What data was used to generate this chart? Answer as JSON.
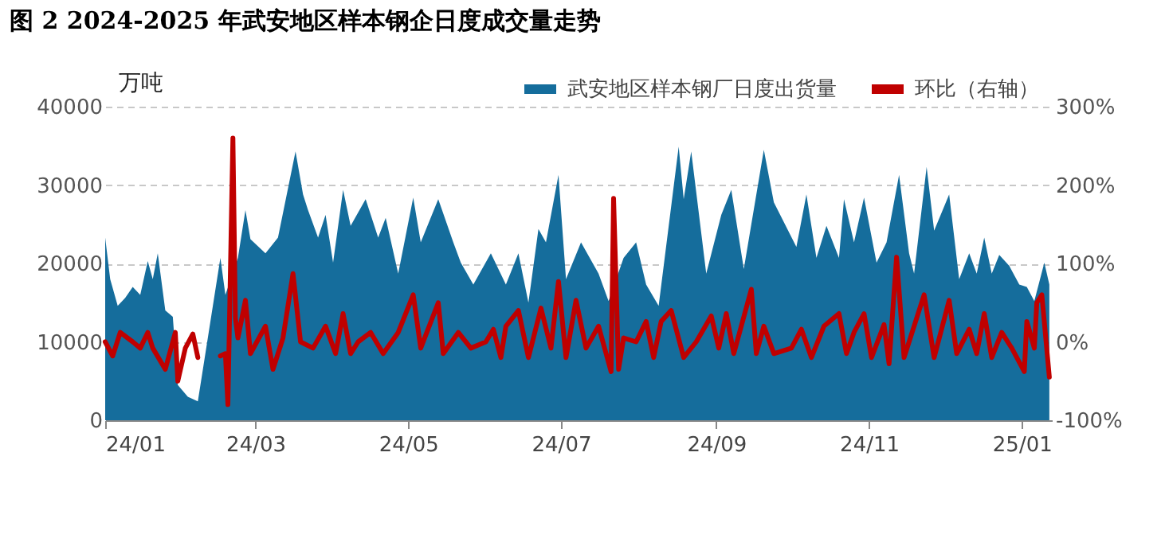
{
  "chart_data": {
    "type": "area",
    "title": "图 2 2024-2025 年武安地区样本钢企日度成交量走势",
    "ylabel": "万吨",
    "xlim": [
      "2024-01-01",
      "2025-01-13"
    ],
    "xticks": [
      {
        "value": "2024-01-01",
        "label": "24/01"
      },
      {
        "value": "2024-03-01",
        "label": "24/03"
      },
      {
        "value": "2024-05-01",
        "label": "24/05"
      },
      {
        "value": "2024-07-01",
        "label": "24/07"
      },
      {
        "value": "2024-09-01",
        "label": "24/09"
      },
      {
        "value": "2024-11-01",
        "label": "24/11"
      },
      {
        "value": "2025-01-01",
        "label": "25/01"
      }
    ],
    "ylim": [
      0,
      40000
    ],
    "yticks": [
      0,
      10000,
      20000,
      30000,
      40000
    ],
    "y2lim": [
      -100,
      300
    ],
    "y2ticks": [
      {
        "value": -100,
        "label": "-100%"
      },
      {
        "value": 0,
        "label": "0%"
      },
      {
        "value": 100,
        "label": "100%"
      },
      {
        "value": 200,
        "label": "200%"
      },
      {
        "value": 300,
        "label": "300%"
      }
    ],
    "grid": "y",
    "legend": "top right",
    "series": [
      {
        "name": "武安地区样本钢厂日度出货量",
        "color": "#156d9c",
        "x": [
          "2024-01-01",
          "2024-01-03",
          "2024-01-06",
          "2024-01-09",
          "2024-01-12",
          "2024-01-15",
          "2024-01-18",
          "2024-01-20",
          "2024-01-22",
          "2024-01-25",
          "2024-01-28",
          "2024-01-30",
          "2024-02-03",
          "2024-02-07",
          "2024-02-16",
          "2024-02-18",
          "2024-02-23",
          "2024-02-26",
          "2024-02-28",
          "2024-03-05",
          "2024-03-10",
          "2024-03-17",
          "2024-03-20",
          "2024-03-22",
          "2024-03-26",
          "2024-03-29",
          "2024-04-01",
          "2024-04-05",
          "2024-04-08",
          "2024-04-14",
          "2024-04-19",
          "2024-04-22",
          "2024-04-27",
          "2024-05-03",
          "2024-05-06",
          "2024-05-13",
          "2024-05-19",
          "2024-05-22",
          "2024-05-27",
          "2024-06-03",
          "2024-06-09",
          "2024-06-14",
          "2024-06-18",
          "2024-06-22",
          "2024-06-25",
          "2024-06-30",
          "2024-07-03",
          "2024-07-09",
          "2024-07-16",
          "2024-07-20",
          "2024-07-26",
          "2024-07-31",
          "2024-08-04",
          "2024-08-09",
          "2024-08-17",
          "2024-08-19",
          "2024-08-22",
          "2024-08-28",
          "2024-09-03",
          "2024-09-07",
          "2024-09-12",
          "2024-09-20",
          "2024-09-24",
          "2024-10-03",
          "2024-10-07",
          "2024-10-11",
          "2024-10-15",
          "2024-10-20",
          "2024-10-22",
          "2024-10-26",
          "2024-10-30",
          "2024-11-04",
          "2024-11-08",
          "2024-11-13",
          "2024-11-17",
          "2024-11-19",
          "2024-11-24",
          "2024-11-27",
          "2024-12-03",
          "2024-12-07",
          "2024-12-11",
          "2024-12-14",
          "2024-12-17",
          "2024-12-20",
          "2024-12-23",
          "2024-12-27",
          "2024-12-31",
          "2025-01-03",
          "2025-01-06",
          "2025-01-10",
          "2025-01-12"
        ],
        "values": [
          23300,
          18000,
          14600,
          15600,
          17000,
          16000,
          20300,
          18000,
          21300,
          14000,
          13200,
          4500,
          3000,
          2400,
          20700,
          16000,
          20700,
          26800,
          23100,
          21300,
          23300,
          34300,
          28800,
          26800,
          23300,
          26200,
          20100,
          29400,
          24800,
          28200,
          23300,
          25800,
          18700,
          28400,
          22700,
          28200,
          22700,
          20100,
          17300,
          21300,
          17300,
          21300,
          15000,
          24400,
          22700,
          31300,
          18000,
          22700,
          18700,
          15200,
          20700,
          22700,
          17300,
          14600,
          34900,
          28200,
          34300,
          18700,
          26200,
          29400,
          19300,
          34500,
          27800,
          22100,
          28800,
          20700,
          24800,
          20700,
          28200,
          22700,
          28400,
          20100,
          22700,
          31300,
          21300,
          18700,
          32300,
          24200,
          28800,
          18000,
          21300,
          18700,
          23300,
          18700,
          21100,
          19700,
          17300,
          17000,
          15200,
          20100,
          17300
        ]
      },
      {
        "name": "环比（右轴）",
        "type": "line",
        "axis": "y2",
        "color": "#c00000",
        "x": [
          "2024-01-01",
          "2024-01-04",
          "2024-01-07",
          "2024-01-12",
          "2024-01-15",
          "2024-01-18",
          "2024-01-20",
          "2024-01-25",
          "2024-01-29",
          "2024-01-30",
          "2024-02-02",
          "2024-02-05",
          "2024-02-07",
          "2024-02-12",
          "2024-02-16",
          "2024-02-18",
          "2024-02-19",
          "2024-02-21",
          "2024-02-22",
          "2024-02-23",
          "2024-02-26",
          "2024-02-28",
          "2024-03-05",
          "2024-03-08",
          "2024-03-12",
          "2024-03-16",
          "2024-03-19",
          "2024-03-24",
          "2024-03-29",
          "2024-04-02",
          "2024-04-05",
          "2024-04-08",
          "2024-04-11",
          "2024-04-16",
          "2024-04-21",
          "2024-04-27",
          "2024-05-03",
          "2024-05-06",
          "2024-05-13",
          "2024-05-15",
          "2024-05-21",
          "2024-05-26",
          "2024-06-01",
          "2024-06-04",
          "2024-06-07",
          "2024-06-09",
          "2024-06-14",
          "2024-06-18",
          "2024-06-23",
          "2024-06-27",
          "2024-06-30",
          "2024-07-03",
          "2024-07-07",
          "2024-07-11",
          "2024-07-16",
          "2024-07-21",
          "2024-07-22",
          "2024-07-24",
          "2024-07-26",
          "2024-07-31",
          "2024-08-04",
          "2024-08-07",
          "2024-08-10",
          "2024-08-14",
          "2024-08-19",
          "2024-08-24",
          "2024-08-30",
          "2024-09-02",
          "2024-09-05",
          "2024-09-08",
          "2024-09-15",
          "2024-09-17",
          "2024-09-20",
          "2024-09-24",
          "2024-10-01",
          "2024-10-05",
          "2024-10-09",
          "2024-10-14",
          "2024-10-20",
          "2024-10-23",
          "2024-10-26",
          "2024-10-30",
          "2024-11-02",
          "2024-11-07",
          "2024-11-09",
          "2024-11-12",
          "2024-11-15",
          "2024-11-18",
          "2024-11-23",
          "2024-11-27",
          "2024-12-03",
          "2024-12-06",
          "2024-12-11",
          "2024-12-14",
          "2024-12-17",
          "2024-12-20",
          "2024-12-24",
          "2024-12-28",
          "2025-01-02",
          "2025-01-03",
          "2025-01-06",
          "2025-01-07",
          "2025-01-09",
          "2025-01-12"
        ],
        "values": [
          0,
          -18,
          12,
          0,
          -8,
          12,
          -8,
          -35,
          12,
          -50,
          -8,
          10,
          -20,
          null,
          -18,
          -15,
          -80,
          260,
          30,
          5,
          53,
          -15,
          20,
          -35,
          5,
          87,
          0,
          -8,
          20,
          -15,
          36,
          -15,
          0,
          12,
          -15,
          12,
          60,
          -8,
          50,
          -15,
          12,
          -8,
          0,
          16,
          -20,
          20,
          40,
          -20,
          43,
          -8,
          77,
          -20,
          53,
          -8,
          20,
          -38,
          183,
          -35,
          5,
          0,
          26,
          -20,
          26,
          40,
          -20,
          0,
          33,
          -8,
          36,
          -15,
          67,
          -15,
          20,
          -15,
          -8,
          16,
          -20,
          20,
          36,
          -15,
          12,
          36,
          -20,
          22,
          -28,
          108,
          -20,
          10,
          60,
          -20,
          53,
          -15,
          16,
          -15,
          36,
          -20,
          12,
          -8,
          -38,
          26,
          -8,
          50,
          60,
          -45
        ]
      }
    ]
  }
}
